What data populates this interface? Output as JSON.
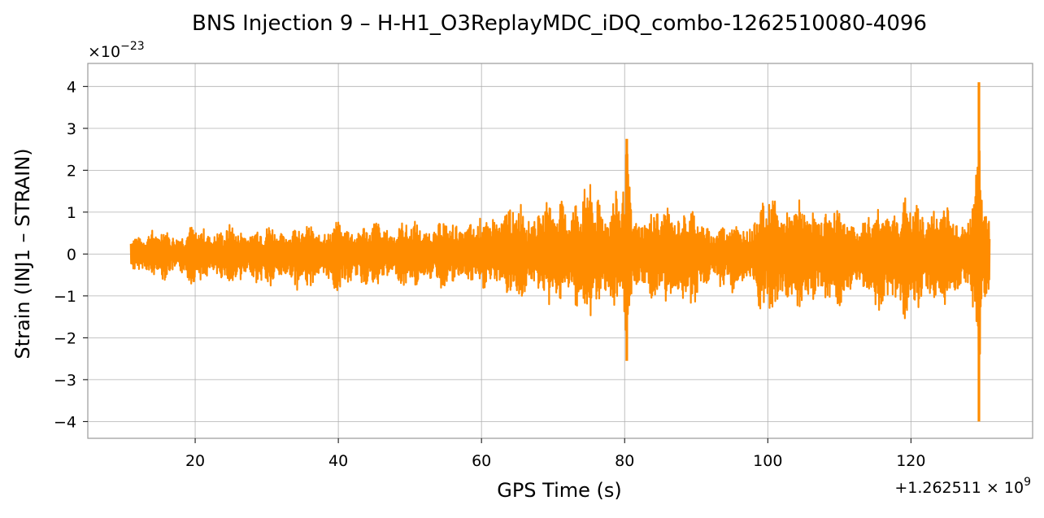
{
  "chart_data": {
    "type": "line",
    "title": "BNS Injection 9 – H-H1_O3ReplayMDC_iDQ_combo-1262510080-4096",
    "xlabel": "GPS Time (s)",
    "ylabel": "Strain (INJ1 – STRAIN)",
    "x_offset_text": "+1.262511 × 10^9",
    "y_multiplier_text": "×10^−23",
    "x_offset_parts": {
      "base": "+1.262511 × 10",
      "exp": "9"
    },
    "y_multiplier_parts": {
      "base": "×10",
      "exp": "−23"
    },
    "xlim": [
      5,
      137
    ],
    "ylim": [
      -4.4,
      4.55
    ],
    "x_ticks": [
      20,
      40,
      60,
      80,
      100,
      120
    ],
    "y_ticks": [
      -4,
      -3,
      -2,
      -1,
      0,
      1,
      2,
      3,
      4
    ],
    "x_tick_labels": [
      "20",
      "40",
      "60",
      "80",
      "100",
      "120"
    ],
    "y_tick_labels": [
      "−4",
      "−3",
      "−2",
      "−1",
      "0",
      "1",
      "2",
      "3",
      "4"
    ],
    "grid": true,
    "series": [
      {
        "color": "#ff8c00",
        "x_range": [
          11,
          131
        ],
        "envelope": [
          {
            "x": 11,
            "upper": 0.6,
            "lower": -0.55
          },
          {
            "x": 20,
            "upper": 0.7,
            "lower": -0.75
          },
          {
            "x": 30,
            "upper": 0.75,
            "lower": -0.85
          },
          {
            "x": 40,
            "upper": 0.8,
            "lower": -0.95
          },
          {
            "x": 50,
            "upper": 0.85,
            "lower": -0.85
          },
          {
            "x": 60,
            "upper": 0.9,
            "lower": -0.9
          },
          {
            "x": 62,
            "upper": 1.3,
            "lower": -1.1
          },
          {
            "x": 70,
            "upper": 1.4,
            "lower": -1.3
          },
          {
            "x": 75,
            "upper": 1.85,
            "lower": -1.75
          },
          {
            "x": 78,
            "upper": 1.5,
            "lower": -1.5
          },
          {
            "x": 80,
            "upper": 2.0,
            "lower": -1.9
          },
          {
            "x": 80.3,
            "upper": 2.75,
            "lower": -2.55
          },
          {
            "x": 81,
            "upper": 1.2,
            "lower": -1.2
          },
          {
            "x": 85,
            "upper": 1.2,
            "lower": -1.3
          },
          {
            "x": 88,
            "upper": 1.35,
            "lower": -1.5
          },
          {
            "x": 92,
            "upper": 0.8,
            "lower": -0.9
          },
          {
            "x": 97,
            "upper": 0.9,
            "lower": -1.0
          },
          {
            "x": 100,
            "upper": 1.55,
            "lower": -1.75
          },
          {
            "x": 102,
            "upper": 1.5,
            "lower": -1.7
          },
          {
            "x": 105,
            "upper": 1.3,
            "lower": -1.4
          },
          {
            "x": 110,
            "upper": 1.3,
            "lower": -1.35
          },
          {
            "x": 113,
            "upper": 0.9,
            "lower": -1.0
          },
          {
            "x": 116,
            "upper": 1.4,
            "lower": -1.6
          },
          {
            "x": 120,
            "upper": 1.4,
            "lower": -1.6
          },
          {
            "x": 125,
            "upper": 1.3,
            "lower": -1.3
          },
          {
            "x": 128.5,
            "upper": 1.1,
            "lower": -1.1
          },
          {
            "x": 129.5,
            "upper": 4.1,
            "lower": -4.0
          },
          {
            "x": 130,
            "upper": 1.3,
            "lower": -1.25
          },
          {
            "x": 131,
            "upper": 1.15,
            "lower": -1.15
          }
        ],
        "spikes": [
          {
            "x": 80.3,
            "max": 2.75,
            "min": -2.55
          },
          {
            "x": 129.5,
            "max": 4.1,
            "min": -4.0
          }
        ]
      }
    ]
  }
}
